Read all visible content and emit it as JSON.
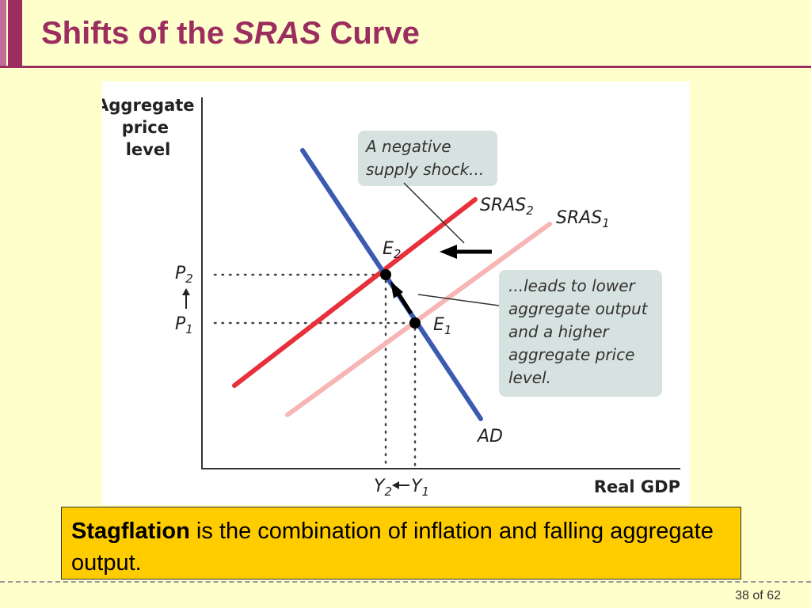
{
  "slide": {
    "title_prefix": "Shifts of the ",
    "title_emphasis": "SRAS",
    "title_suffix": " Curve",
    "page_current": "38",
    "page_of": "of",
    "page_total": "62"
  },
  "diagram": {
    "y_axis_label": [
      "Aggregate",
      "price",
      "level"
    ],
    "x_axis_label": "Real GDP",
    "curves": {
      "sras2": {
        "base": "SRAS",
        "sub": "2",
        "color": "#e8303a"
      },
      "sras1": {
        "base": "SRAS",
        "sub": "1",
        "color": "#f7b5b5"
      },
      "ad": {
        "label": "AD",
        "color": "#3a5bb0"
      }
    },
    "points": {
      "e2": {
        "base": "E",
        "sub": "2"
      },
      "e1": {
        "base": "E",
        "sub": "1"
      }
    },
    "price_levels": {
      "p2": {
        "base": "P",
        "sub": "2"
      },
      "p1": {
        "base": "P",
        "sub": "1"
      }
    },
    "outputs": {
      "y2": {
        "base": "Y",
        "sub": "2"
      },
      "y1": {
        "base": "Y",
        "sub": "1"
      }
    },
    "annotations": {
      "shock_lines": [
        "A negative",
        "supply shock..."
      ],
      "result_lines": [
        "...leads to lower",
        "aggregate output",
        "and a higher",
        "aggregate price",
        "level."
      ]
    },
    "colors": {
      "annotation_bg": "#d6e2e0",
      "axis": "#333333"
    }
  },
  "callout": {
    "term": "Stagflation",
    "definition": " is the combination of inflation and falling aggregate output."
  }
}
